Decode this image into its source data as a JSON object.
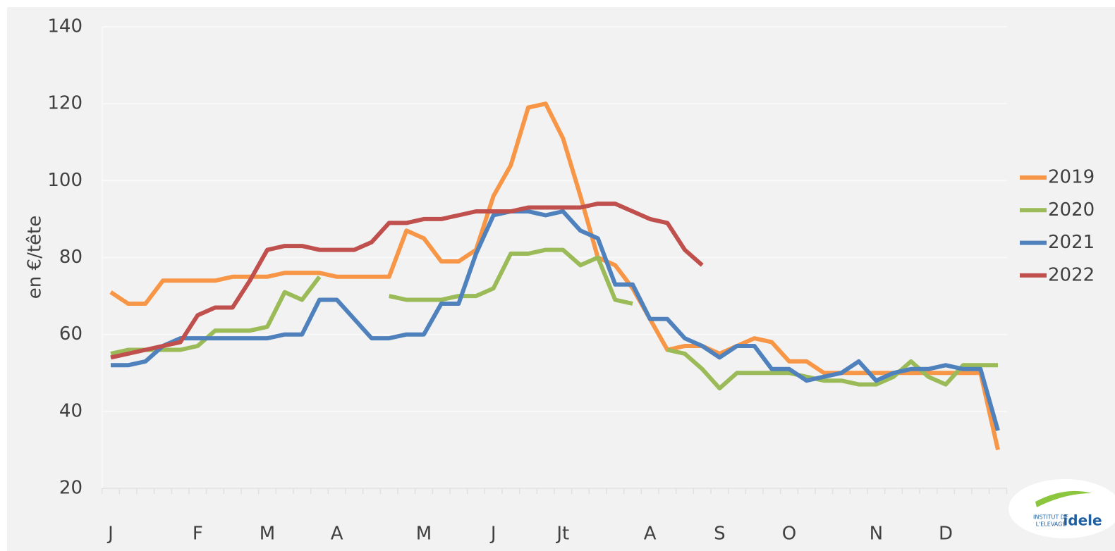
{
  "chart_data": {
    "type": "line",
    "y_label": "en €/tête",
    "categories": [
      "J",
      null,
      null,
      null,
      null,
      "F",
      null,
      null,
      null,
      "M",
      null,
      null,
      null,
      "A",
      null,
      null,
      null,
      null,
      "M",
      null,
      null,
      null,
      "J",
      null,
      null,
      null,
      "Jt",
      null,
      null,
      null,
      null,
      "A",
      null,
      null,
      null,
      "S",
      null,
      null,
      null,
      "O",
      null,
      null,
      null,
      null,
      "N",
      null,
      null,
      null,
      "D",
      null,
      null,
      null
    ],
    "ylim": [
      20,
      140
    ],
    "yticks": [
      20,
      40,
      60,
      80,
      100,
      120,
      140
    ],
    "grid": true,
    "legend": "right",
    "series": [
      {
        "name": "2019",
        "color": "#f79646",
        "values": [
          71,
          68,
          68,
          74,
          74,
          74,
          74,
          75,
          75,
          75,
          76,
          76,
          76,
          75,
          75,
          75,
          75,
          87,
          85,
          79,
          79,
          82,
          96,
          104,
          119,
          120,
          111,
          96,
          80,
          78,
          72,
          64,
          56,
          57,
          57,
          55,
          57,
          59,
          58,
          53,
          53,
          50,
          50,
          50,
          50,
          50,
          50,
          50,
          50,
          50,
          50,
          30
        ]
      },
      {
        "name": "2020",
        "color": "#9bbb59",
        "values": [
          55,
          56,
          56,
          56,
          56,
          57,
          61,
          61,
          61,
          62,
          71,
          69,
          75,
          null,
          null,
          null,
          70,
          69,
          69,
          69,
          70,
          70,
          72,
          81,
          81,
          82,
          82,
          78,
          80,
          69,
          68,
          null,
          56,
          55,
          51,
          46,
          50,
          50,
          50,
          50,
          49,
          48,
          48,
          47,
          47,
          49,
          53,
          49,
          47,
          52,
          52,
          52
        ]
      },
      {
        "name": "2021",
        "color": "#4f81bd",
        "values": [
          52,
          52,
          53,
          57,
          59,
          59,
          59,
          59,
          59,
          59,
          60,
          60,
          69,
          69,
          64,
          59,
          59,
          60,
          60,
          68,
          68,
          81,
          91,
          92,
          92,
          91,
          92,
          87,
          85,
          73,
          73,
          64,
          64,
          59,
          57,
          54,
          57,
          57,
          51,
          51,
          48,
          49,
          50,
          53,
          48,
          50,
          51,
          51,
          52,
          51,
          51,
          35
        ]
      },
      {
        "name": "2022",
        "color": "#c0504d",
        "values": [
          54,
          55,
          56,
          57,
          58,
          65,
          67,
          67,
          74,
          82,
          83,
          83,
          82,
          82,
          82,
          84,
          89,
          89,
          90,
          90,
          91,
          92,
          92,
          92,
          93,
          93,
          93,
          93,
          94,
          94,
          92,
          90,
          89,
          82,
          78,
          null,
          null,
          null,
          null,
          null,
          null,
          null,
          null,
          null,
          null,
          null,
          null,
          null,
          null,
          null,
          null,
          null
        ]
      }
    ]
  },
  "logo": {
    "line1": "INSTITUT DE",
    "line2": "L'ELEVAGE",
    "brand": "idele"
  }
}
